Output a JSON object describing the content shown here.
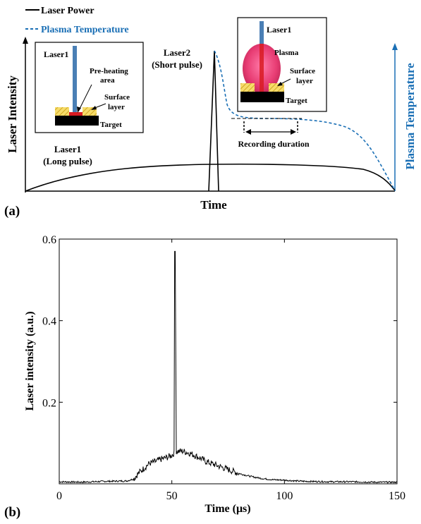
{
  "panel_a": {
    "legend": {
      "laser_power": "Laser Power",
      "plasma_temperature": "Plasma Temperature"
    },
    "y_label_left": "Laser Intensity",
    "y_label_right": "Plasma Temperature",
    "x_label": "Time",
    "panel_label": "(a)",
    "annotations": {
      "laser1_long_1": "Laser1",
      "laser1_long_2": "(Long pulse)",
      "laser2_short_1": "Laser2",
      "laser2_short_2": "(Short pulse)",
      "recording_duration": "Recording duration"
    },
    "inset_left": {
      "laser": "Laser1",
      "preheat_1": "Pre-heating",
      "preheat_2": "area",
      "surface_1": "Surface",
      "surface_2": "layer",
      "target": "Target"
    },
    "inset_right": {
      "laser": "Laser1",
      "plasma": "Plasma",
      "surface_1": "Surface",
      "surface_2": "layer",
      "target": "Target"
    },
    "colors": {
      "laser_power": "#000000",
      "plasma_temperature": "#1a6fb5",
      "plasma_fill": "#e8407a",
      "laser_beam": "#4a7fb5",
      "surface": "#f0c020"
    }
  },
  "chart_data": [
    {
      "type": "line",
      "series": [
        {
          "name": "Laser Power",
          "style": "solid",
          "color": "#000000"
        },
        {
          "name": "Plasma Temperature",
          "style": "dashed",
          "color": "#1a6fb5"
        }
      ],
      "xlabel": "Time",
      "ylabel": "Laser Intensity",
      "ylabel_right": "Plasma Temperature",
      "note": ""
    },
    {
      "type": "line",
      "xlabel": "Time (μs)",
      "ylabel": "Laser intensity (a.u.)",
      "xlim": [
        0,
        150
      ],
      "ylim": [
        0,
        0.6
      ],
      "x_ticks": [
        0,
        50,
        100,
        150
      ],
      "y_ticks": [
        0.2,
        0.4,
        0.6
      ],
      "x_tick_labels": [
        "0",
        "50",
        "100",
        "150"
      ],
      "y_tick_labels": [
        "0.2",
        "0.4",
        "0.6"
      ],
      "panel_label": "(b)",
      "series": [
        {
          "name": "",
          "x": [
            0,
            10,
            20,
            30,
            33,
            35,
            38,
            40,
            43,
            45,
            48,
            50,
            51,
            51.5,
            52,
            55,
            58,
            60,
            63,
            65,
            70,
            75,
            80,
            85,
            90,
            95,
            100,
            105,
            110,
            120,
            130,
            140,
            150
          ],
          "y": [
            0.005,
            0.004,
            0.006,
            0.007,
            0.012,
            0.025,
            0.04,
            0.05,
            0.055,
            0.06,
            0.065,
            0.07,
            0.075,
            0.57,
            0.08,
            0.08,
            0.075,
            0.07,
            0.062,
            0.055,
            0.045,
            0.035,
            0.025,
            0.018,
            0.013,
            0.01,
            0.009,
            0.007,
            0.006,
            0.005,
            0.005,
            0.004,
            0.004
          ]
        }
      ]
    }
  ]
}
